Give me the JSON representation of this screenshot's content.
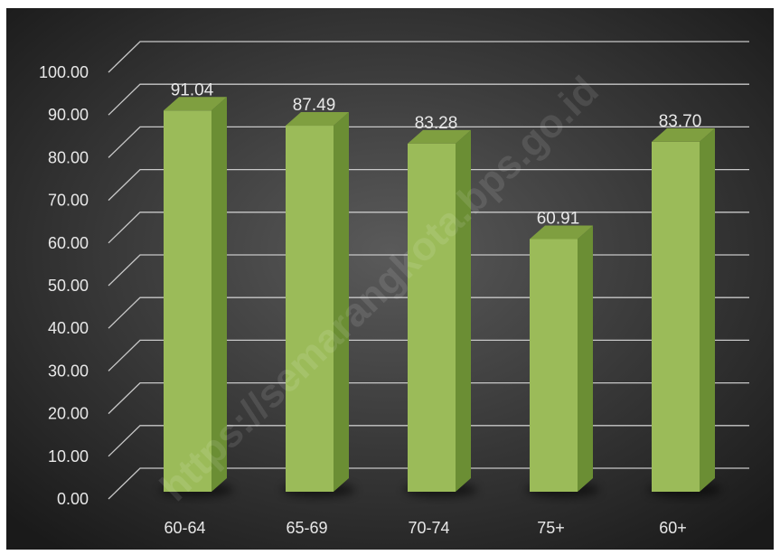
{
  "watermark": "https://semarangkota.bps.go.id",
  "colors": {
    "bar_front": "#9bbb59",
    "bar_side": "#6b8e34",
    "bar_top": "#7f9f40",
    "gridline": "#c8c8c8",
    "text": "#e8e8e8",
    "background_center": "#5a5a5a",
    "background_edge": "#1a1a1a"
  },
  "chart_data": {
    "type": "bar",
    "style": "3d-column",
    "categories": [
      "60-64",
      "65-69",
      "70-74",
      "75+",
      "60+"
    ],
    "values": [
      91.04,
      87.49,
      83.28,
      60.91,
      83.7
    ],
    "data_labels": [
      "91.04",
      "87.49",
      "83.28",
      "60.91",
      "83.70"
    ],
    "ylim": [
      0,
      100
    ],
    "yticks": [
      "0.00",
      "10.00",
      "20.00",
      "30.00",
      "40.00",
      "50.00",
      "60.00",
      "70.00",
      "80.00",
      "90.00",
      "100.00"
    ],
    "grid": true,
    "legend": "none"
  }
}
